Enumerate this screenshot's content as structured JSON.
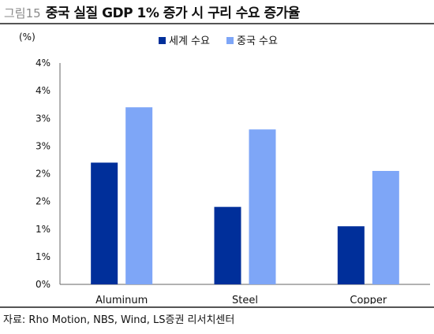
{
  "figure": {
    "label": "그림15",
    "title": "중국 실질 GDP 1% 증가 시 구리 수요 증가율",
    "source": "자료: Rho Motion, NBS, Wind, LS증권 리서치센터"
  },
  "colors": {
    "world": "#002f9a",
    "china": "#7ea6f7"
  },
  "chart_data": {
    "type": "bar",
    "unit_label": "(%)",
    "categories": [
      "Aluminum",
      "Steel",
      "Copper"
    ],
    "series": [
      {
        "name": "세계 수요",
        "values": [
          2.2,
          1.4,
          1.05
        ]
      },
      {
        "name": "중국 수요",
        "values": [
          3.2,
          2.8,
          2.05
        ]
      }
    ],
    "ylim": [
      0,
      4
    ],
    "yticks": [
      0,
      0.5,
      1,
      1.5,
      2,
      2.5,
      3,
      3.5,
      4
    ],
    "ytick_labels": [
      "0%",
      "1%",
      "1%",
      "2%",
      "2%",
      "3%",
      "3%",
      "4%",
      "4%"
    ],
    "legend_position": "top-center",
    "grid": false
  }
}
